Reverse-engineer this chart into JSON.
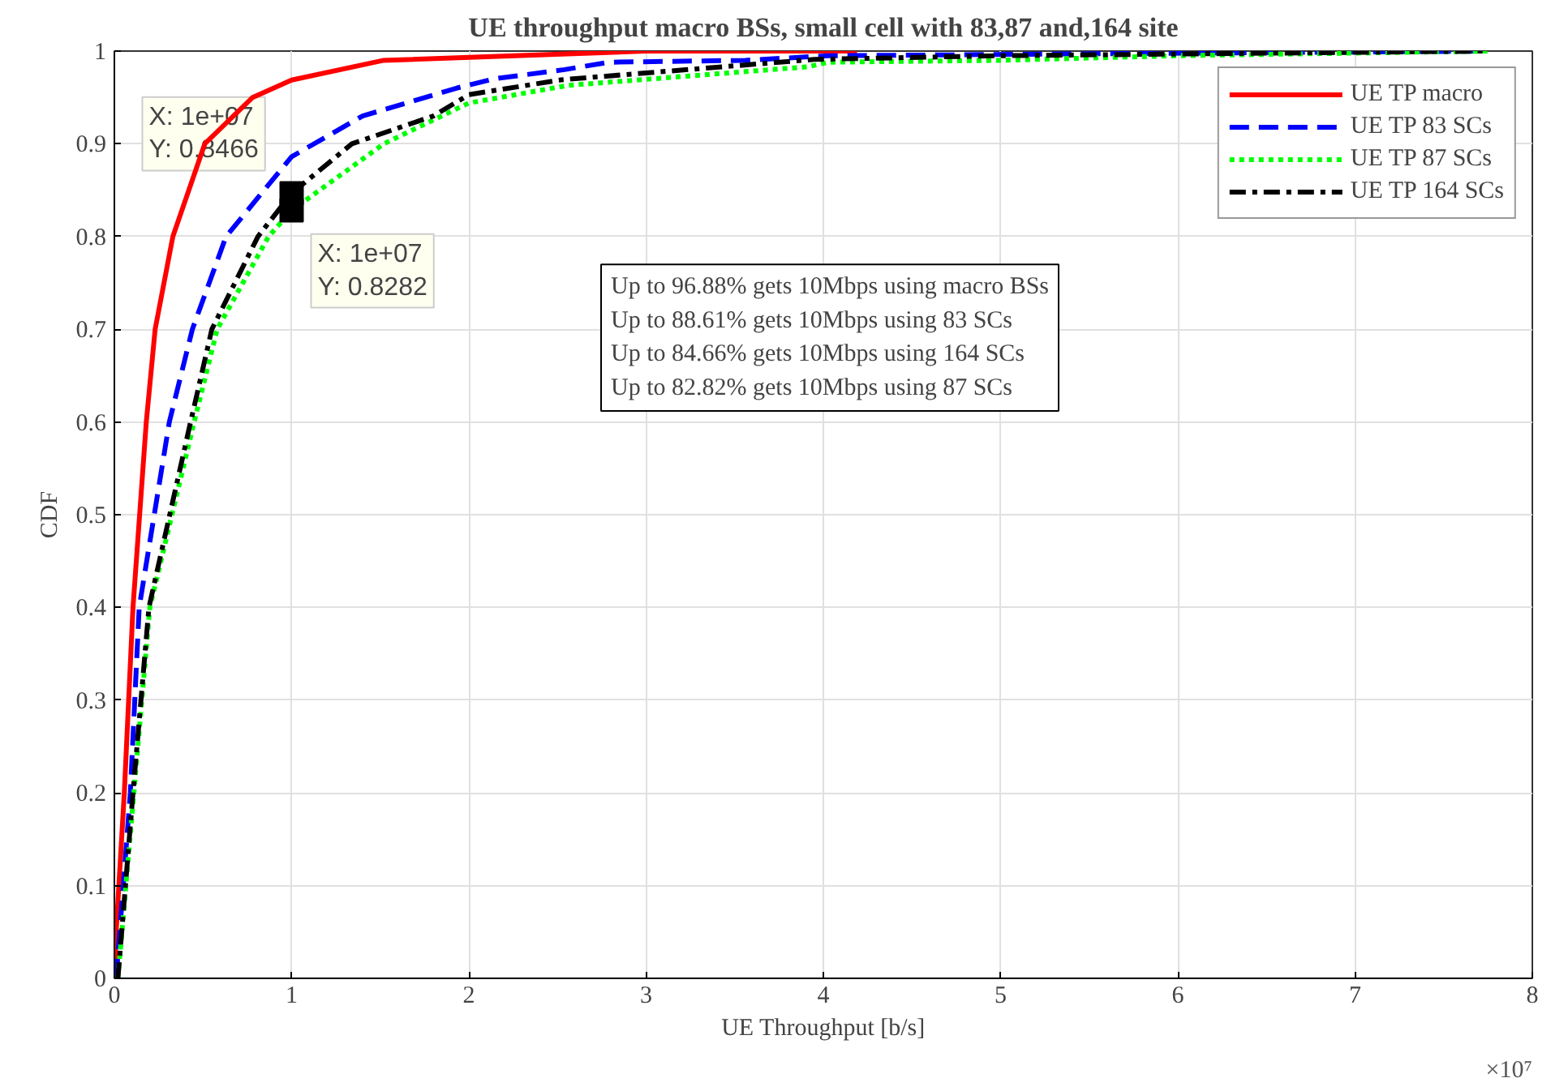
{
  "chart_data": {
    "type": "line",
    "title": "UE throughput macro BSs, small cell with 83,87 and,164 site",
    "xlabel": "UE Throughput [b/s]",
    "ylabel": "CDF",
    "xlim": [
      0,
      8
    ],
    "ylim": [
      0,
      1
    ],
    "xticks": [
      0,
      1,
      2,
      3,
      4,
      5,
      6,
      7,
      8
    ],
    "yticks": [
      0,
      0.1,
      0.2,
      0.3,
      0.4,
      0.5,
      0.6,
      0.7,
      0.8,
      0.9,
      1
    ],
    "grid": true,
    "legend": "top right",
    "marker": "none",
    "series": [
      {
        "name": "UE TP macro",
        "color": "#ff0000",
        "line_style": "solid",
        "x": [
          0,
          0.01,
          0.056,
          0.105,
          0.18,
          0.23,
          0.33,
          0.51,
          0.78,
          1.0,
          1.52,
          3.0,
          4.19
        ],
        "values": [
          0,
          0.05,
          0.2,
          0.4,
          0.6,
          0.7,
          0.8,
          0.9,
          0.95,
          0.9688,
          0.99,
          1,
          1
        ]
      },
      {
        "name": "UE TP 83 SCs",
        "color": "#0000ff",
        "line_style": "dashed",
        "x": [
          0.01,
          0.09,
          0.14,
          0.31,
          0.44,
          0.63,
          1.0,
          1.4,
          1.93,
          2.14,
          2.54,
          2.79,
          3.56,
          4.03,
          7.75
        ],
        "values": [
          0,
          0.2,
          0.4,
          0.6,
          0.7,
          0.8,
          0.8861,
          0.93,
          0.96,
          0.97,
          0.98,
          0.988,
          0.99,
          0.995,
          1
        ]
      },
      {
        "name": "UE TP 87 SCs",
        "color": "#00ff00",
        "line_style": "dotted",
        "x": [
          0.02,
          0.11,
          0.2,
          0.45,
          0.58,
          0.87,
          1.0,
          1.52,
          2.0,
          2.56,
          3.91,
          4.03,
          5.0,
          6.0,
          7.75
        ],
        "values": [
          0,
          0.2,
          0.4,
          0.6,
          0.7,
          0.8,
          0.8282,
          0.9,
          0.944,
          0.963,
          0.983,
          0.988,
          0.99,
          0.995,
          1
        ]
      },
      {
        "name": "UE TP 164 SCs",
        "color": "#000000",
        "line_style": "dashdot",
        "x": [
          0.02,
          0.105,
          0.195,
          0.43,
          0.55,
          0.81,
          1.0,
          1.34,
          1.8,
          2.0,
          2.52,
          3.95,
          5.0,
          7.75
        ],
        "values": [
          0,
          0.2,
          0.4,
          0.6,
          0.7,
          0.8,
          0.8466,
          0.9,
          0.93,
          0.953,
          0.969,
          0.991,
          0.995,
          1
        ]
      }
    ],
    "annotations": [
      {
        "text": "X: 1e+07\nY: 0.8466",
        "x": 1,
        "y": 0.8466
      },
      {
        "text": "X: 1e+07\nY: 0.8282",
        "x": 1,
        "y": 0.8282
      },
      "Up to 96.88% gets 10Mbps using macro BSs\nUp to 88.61% gets 10Mbps using 83 SCs\nUp to 84.66% gets 10Mbps using 164 SCs\nUp to 82.82% gets 10Mbps using 87 SCs",
      "×10⁷"
    ]
  }
}
